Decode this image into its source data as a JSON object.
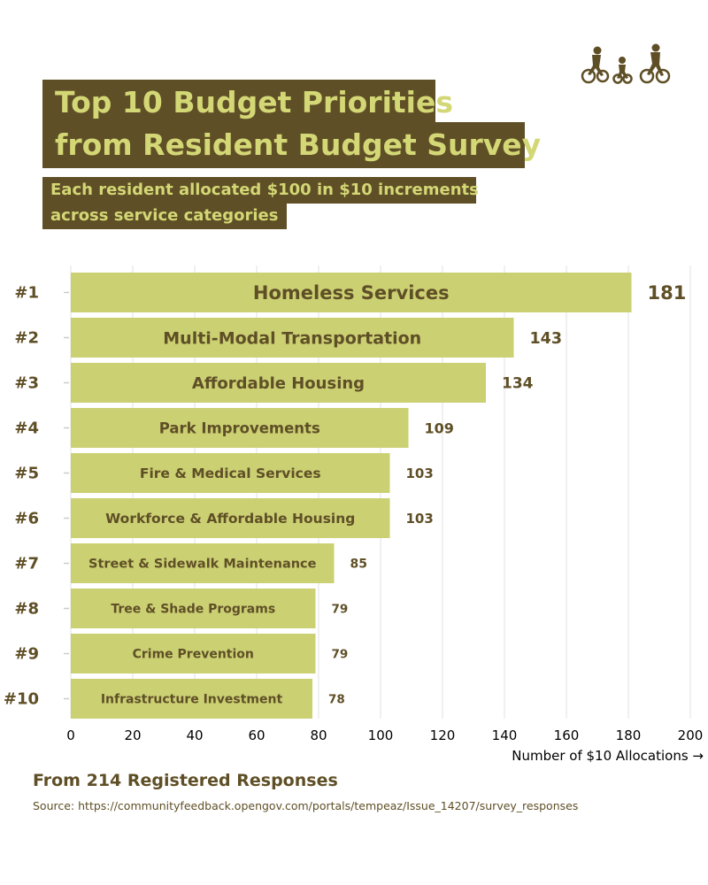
{
  "chart_data": {
    "type": "bar",
    "orientation": "horizontal",
    "title": "Top 10 Budget Priorities from Resident Budget Survey",
    "title_lines": [
      "Top 10 Budget Priorities",
      "from Resident Budget Survey"
    ],
    "subtitle_lines": [
      "Each resident allocated $100 in $10 increments",
      "across service categories"
    ],
    "ranks": [
      "#1",
      "#2",
      "#3",
      "#4",
      "#5",
      "#6",
      "#7",
      "#8",
      "#9",
      "#10"
    ],
    "categories": [
      "Homeless Services",
      "Multi-Modal Transportation",
      "Affordable Housing",
      "Park Improvements",
      "Fire & Medical Services",
      "Workforce & Affordable Housing",
      "Street & Sidewalk Maintenance",
      "Tree & Shade Programs",
      "Crime Prevention",
      "Infrastructure Investment"
    ],
    "values": [
      181,
      143,
      134,
      109,
      103,
      103,
      85,
      79,
      79,
      78
    ],
    "value_labels": [
      "181",
      "143",
      "134",
      "109",
      "103",
      "103",
      "85",
      "79",
      "79",
      "78"
    ],
    "xlim": [
      0,
      200
    ],
    "xticks": [
      "0",
      "20",
      "40",
      "60",
      "80",
      "100",
      "120",
      "140",
      "160",
      "180",
      "200"
    ],
    "xlabel": "Number of $10 Allocations →",
    "ylabel": "",
    "grid": "vertical",
    "legend": "none",
    "colors": {
      "bar": "#cbd073",
      "text": "#5f4f26",
      "title_bg": "#5f4f26",
      "title_text": "#d3d775",
      "grid": "#ececec"
    }
  },
  "footer": {
    "responses": "From 214 Registered Responses",
    "source": "Source: https://communityfeedback.opengov.com/portals/tempeaz/Issue_14207/survey_responses"
  },
  "logo": {
    "icon": "family-cycling-icon"
  }
}
